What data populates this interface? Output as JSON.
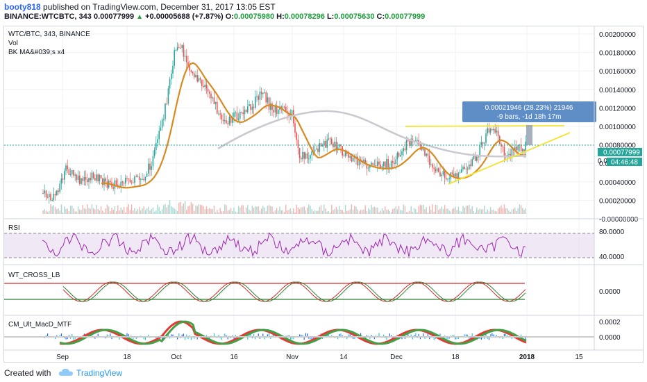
{
  "header": {
    "user": "booty818",
    "published": "published on TradingView.com, December 31, 2017 13:05 EST",
    "symbol_line": "BINANCE:WTCBTC, 343",
    "last": "0.00077999",
    "change_arrow": "▲",
    "change": "+0.00005688 (+7.87%)",
    "o_label": "O:",
    "o_value": "0.00075980",
    "h_label": "H:",
    "h_value": "0.00078296",
    "l_label": "L:",
    "l_value": "0.00075630",
    "c_label": "C:",
    "c_value": "0.00077999"
  },
  "legend": {
    "title": "WTC/BTC, 343, BINANCE",
    "vol": "Vol",
    "ma": "BK MA&#039;s x4"
  },
  "price_axis": {
    "ticks": [
      "0.00200000",
      "0.00180000",
      "0.00160000",
      "0.00140000",
      "0.00120000",
      "0.00100000",
      "0.00080000",
      "0.00060000",
      "0.00040000",
      "0.00020000",
      "-0.00000000"
    ],
    "last_price_label": "0.00077999",
    "countdown_label": "04:46:48",
    "partial_label": "0.0"
  },
  "measure_box": {
    "line1": "0.00021946 (28.23%) 21946",
    "line2": "-9 bars, -1d 18h 17m"
  },
  "rsi": {
    "title": "RSI",
    "ticks": [
      "80.0000",
      "40.0000"
    ]
  },
  "wt": {
    "title": "WT_CROSS_LB",
    "ticks": [
      "0.0000"
    ]
  },
  "macd": {
    "title": "CM_Ult_MacD_MTF",
    "ticks": [
      "0.0002",
      "0.0000"
    ]
  },
  "time_axis": {
    "labels": [
      "Sep",
      "18",
      "Oct",
      "16",
      "Nov",
      "14",
      "Dec",
      "18",
      "2018",
      "15"
    ]
  },
  "footer": {
    "created": "Created with",
    "brand": "TradingView"
  },
  "colors": {
    "up": "#26a69a",
    "down": "#ef5350",
    "ma_orange": "#d88a1f",
    "ma_grey": "#c8c8cc",
    "trendline": "#f2e32f",
    "rsi": "#9c27b0",
    "price_tag": "#26a69a",
    "measure_bg": "#5f8ec6"
  }
}
